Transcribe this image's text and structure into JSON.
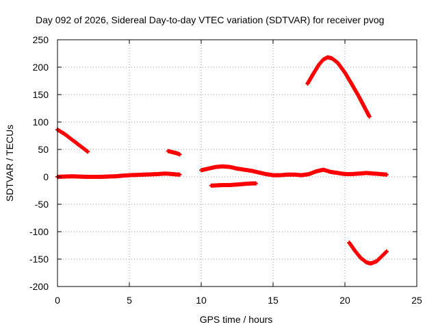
{
  "chart_data": {
    "type": "scatter",
    "title": "Day 092 of 2026, Sidereal Day-to-day VTEC variation (SDTVAR) for receiver pvog",
    "xlabel": "GPS time / hours",
    "ylabel": "SDTVAR / TECUs",
    "xlim": [
      0,
      25
    ],
    "ylim": [
      -200,
      250
    ],
    "xticks": [
      0,
      5,
      10,
      15,
      20,
      25
    ],
    "yticks": [
      -200,
      -150,
      -100,
      -50,
      0,
      50,
      100,
      150,
      200,
      250
    ],
    "grid": true,
    "marker": "plus",
    "series": [
      {
        "color": "#ff0000",
        "segments": [
          [
            [
              0.0,
              86
            ],
            [
              0.5,
              78
            ],
            [
              1.0,
              68
            ],
            [
              1.5,
              58
            ],
            [
              2.0,
              48
            ],
            [
              2.1,
              46
            ]
          ],
          [
            [
              0.0,
              0
            ],
            [
              1.0,
              1
            ],
            [
              2.0,
              0
            ],
            [
              3.0,
              0
            ],
            [
              4.0,
              1
            ],
            [
              5.0,
              3
            ],
            [
              6.0,
              4
            ],
            [
              7.0,
              5
            ],
            [
              7.5,
              6
            ],
            [
              8.0,
              5
            ],
            [
              8.5,
              4
            ]
          ],
          [
            [
              7.7,
              47
            ],
            [
              8.0,
              45
            ],
            [
              8.3,
              43
            ],
            [
              8.5,
              41
            ]
          ],
          [
            [
              10.0,
              12
            ],
            [
              10.5,
              15
            ],
            [
              11.0,
              18
            ],
            [
              11.5,
              19
            ],
            [
              12.0,
              18
            ],
            [
              12.5,
              15
            ],
            [
              13.0,
              13
            ],
            [
              13.5,
              11
            ],
            [
              14.0,
              8
            ],
            [
              14.5,
              5
            ],
            [
              15.0,
              3
            ],
            [
              15.5,
              3
            ],
            [
              16.0,
              4
            ],
            [
              16.5,
              4
            ],
            [
              17.0,
              3
            ],
            [
              17.5,
              5
            ],
            [
              18.0,
              10
            ],
            [
              18.5,
              13
            ],
            [
              19.0,
              9
            ],
            [
              19.5,
              7
            ],
            [
              20.0,
              5
            ],
            [
              20.5,
              5
            ],
            [
              21.0,
              6
            ],
            [
              21.5,
              7
            ],
            [
              22.0,
              6
            ],
            [
              22.5,
              5
            ],
            [
              22.9,
              4
            ]
          ],
          [
            [
              10.7,
              -16
            ],
            [
              11.5,
              -15
            ],
            [
              12.0,
              -15
            ],
            [
              12.5,
              -14
            ],
            [
              13.0,
              -13
            ],
            [
              13.5,
              -12
            ],
            [
              13.8,
              -12
            ]
          ],
          [
            [
              17.4,
              170
            ],
            [
              17.8,
              188
            ],
            [
              18.2,
              205
            ],
            [
              18.5,
              214
            ],
            [
              18.8,
              218
            ],
            [
              19.1,
              216
            ],
            [
              19.5,
              208
            ],
            [
              20.0,
              190
            ],
            [
              20.5,
              168
            ],
            [
              21.0,
              145
            ],
            [
              21.5,
              120
            ],
            [
              21.7,
              110
            ]
          ],
          [
            [
              20.3,
              -120
            ],
            [
              20.7,
              -135
            ],
            [
              21.1,
              -148
            ],
            [
              21.5,
              -156
            ],
            [
              21.8,
              -158
            ],
            [
              22.2,
              -154
            ],
            [
              22.6,
              -144
            ],
            [
              22.9,
              -136
            ]
          ]
        ]
      }
    ]
  }
}
